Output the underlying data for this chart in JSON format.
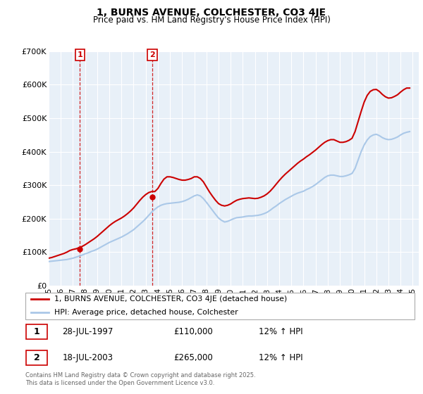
{
  "title": "1, BURNS AVENUE, COLCHESTER, CO3 4JE",
  "subtitle": "Price paid vs. HM Land Registry's House Price Index (HPI)",
  "legend_line1": "1, BURNS AVENUE, COLCHESTER, CO3 4JE (detached house)",
  "legend_line2": "HPI: Average price, detached house, Colchester",
  "footer": "Contains HM Land Registry data © Crown copyright and database right 2025.\nThis data is licensed under the Open Government Licence v3.0.",
  "purchases": [
    {
      "num": 1,
      "date": "28-JUL-1997",
      "price": "£110,000",
      "hpi": "12% ↑ HPI",
      "year": 1997.57,
      "value": 110000
    },
    {
      "num": 2,
      "date": "18-JUL-2003",
      "price": "£265,000",
      "hpi": "12% ↑ HPI",
      "year": 2003.54,
      "value": 265000
    }
  ],
  "hpi_color": "#aac8e8",
  "price_color": "#cc0000",
  "vline_color": "#cc0000",
  "plot_bg": "#e8f0f8",
  "grid_color": "#ffffff",
  "ylim": [
    0,
    700000
  ],
  "yticks": [
    0,
    100000,
    200000,
    300000,
    400000,
    500000,
    600000,
    700000
  ],
  "ytick_labels": [
    "£0",
    "£100K",
    "£200K",
    "£300K",
    "£400K",
    "£500K",
    "£600K",
    "£700K"
  ],
  "xlim_start": 1995.0,
  "xlim_end": 2025.5,
  "xticks": [
    1995,
    1996,
    1997,
    1998,
    1999,
    2000,
    2001,
    2002,
    2003,
    2004,
    2005,
    2006,
    2007,
    2008,
    2009,
    2010,
    2011,
    2012,
    2013,
    2014,
    2015,
    2016,
    2017,
    2018,
    2019,
    2020,
    2021,
    2022,
    2023,
    2024,
    2025
  ],
  "hpi_data_x": [
    1995.0,
    1995.25,
    1995.5,
    1995.75,
    1996.0,
    1996.25,
    1996.5,
    1996.75,
    1997.0,
    1997.25,
    1997.5,
    1997.75,
    1998.0,
    1998.25,
    1998.5,
    1998.75,
    1999.0,
    1999.25,
    1999.5,
    1999.75,
    2000.0,
    2000.25,
    2000.5,
    2000.75,
    2001.0,
    2001.25,
    2001.5,
    2001.75,
    2002.0,
    2002.25,
    2002.5,
    2002.75,
    2003.0,
    2003.25,
    2003.5,
    2003.75,
    2004.0,
    2004.25,
    2004.5,
    2004.75,
    2005.0,
    2005.25,
    2005.5,
    2005.75,
    2006.0,
    2006.25,
    2006.5,
    2006.75,
    2007.0,
    2007.25,
    2007.5,
    2007.75,
    2008.0,
    2008.25,
    2008.5,
    2008.75,
    2009.0,
    2009.25,
    2009.5,
    2009.75,
    2010.0,
    2010.25,
    2010.5,
    2010.75,
    2011.0,
    2011.25,
    2011.5,
    2011.75,
    2012.0,
    2012.25,
    2012.5,
    2012.75,
    2013.0,
    2013.25,
    2013.5,
    2013.75,
    2014.0,
    2014.25,
    2014.5,
    2014.75,
    2015.0,
    2015.25,
    2015.5,
    2015.75,
    2016.0,
    2016.25,
    2016.5,
    2016.75,
    2017.0,
    2017.25,
    2017.5,
    2017.75,
    2018.0,
    2018.25,
    2018.5,
    2018.75,
    2019.0,
    2019.25,
    2019.5,
    2019.75,
    2020.0,
    2020.25,
    2020.5,
    2020.75,
    2021.0,
    2021.25,
    2021.5,
    2021.75,
    2022.0,
    2022.25,
    2022.5,
    2022.75,
    2023.0,
    2023.25,
    2023.5,
    2023.75,
    2024.0,
    2024.25,
    2024.5,
    2024.75
  ],
  "hpi_data_y": [
    72000,
    73000,
    74000,
    75000,
    76000,
    77000,
    78000,
    80000,
    82000,
    85000,
    88000,
    91000,
    95000,
    98000,
    102000,
    105000,
    109000,
    114000,
    119000,
    124000,
    129000,
    133000,
    137000,
    141000,
    145000,
    150000,
    155000,
    161000,
    167000,
    175000,
    183000,
    191000,
    200000,
    210000,
    220000,
    228000,
    235000,
    240000,
    243000,
    245000,
    246000,
    247000,
    248000,
    249000,
    251000,
    254000,
    258000,
    263000,
    268000,
    271000,
    268000,
    260000,
    249000,
    237000,
    225000,
    213000,
    202000,
    195000,
    190000,
    192000,
    196000,
    200000,
    203000,
    204000,
    205000,
    207000,
    208000,
    208000,
    209000,
    210000,
    212000,
    215000,
    219000,
    225000,
    232000,
    238000,
    245000,
    251000,
    257000,
    262000,
    267000,
    272000,
    276000,
    279000,
    282000,
    287000,
    291000,
    296000,
    302000,
    309000,
    316000,
    323000,
    328000,
    330000,
    330000,
    328000,
    326000,
    326000,
    328000,
    331000,
    335000,
    350000,
    375000,
    400000,
    420000,
    435000,
    445000,
    450000,
    452000,
    448000,
    442000,
    438000,
    436000,
    437000,
    440000,
    444000,
    450000,
    455000,
    458000,
    460000
  ],
  "price_data_x": [
    1995.0,
    1995.25,
    1995.5,
    1995.75,
    1996.0,
    1996.25,
    1996.5,
    1996.75,
    1997.0,
    1997.25,
    1997.5,
    1997.75,
    1998.0,
    1998.25,
    1998.5,
    1998.75,
    1999.0,
    1999.25,
    1999.5,
    1999.75,
    2000.0,
    2000.25,
    2000.5,
    2000.75,
    2001.0,
    2001.25,
    2001.5,
    2001.75,
    2002.0,
    2002.25,
    2002.5,
    2002.75,
    2003.0,
    2003.25,
    2003.5,
    2003.75,
    2004.0,
    2004.25,
    2004.5,
    2004.75,
    2005.0,
    2005.25,
    2005.5,
    2005.75,
    2006.0,
    2006.25,
    2006.5,
    2006.75,
    2007.0,
    2007.25,
    2007.5,
    2007.75,
    2008.0,
    2008.25,
    2008.5,
    2008.75,
    2009.0,
    2009.25,
    2009.5,
    2009.75,
    2010.0,
    2010.25,
    2010.5,
    2010.75,
    2011.0,
    2011.25,
    2011.5,
    2011.75,
    2012.0,
    2012.25,
    2012.5,
    2012.75,
    2013.0,
    2013.25,
    2013.5,
    2013.75,
    2014.0,
    2014.25,
    2014.5,
    2014.75,
    2015.0,
    2015.25,
    2015.5,
    2015.75,
    2016.0,
    2016.25,
    2016.5,
    2016.75,
    2017.0,
    2017.25,
    2017.5,
    2017.75,
    2018.0,
    2018.25,
    2018.5,
    2018.75,
    2019.0,
    2019.25,
    2019.5,
    2019.75,
    2020.0,
    2020.25,
    2020.5,
    2020.75,
    2021.0,
    2021.25,
    2021.5,
    2021.75,
    2022.0,
    2022.25,
    2022.5,
    2022.75,
    2023.0,
    2023.25,
    2023.5,
    2023.75,
    2024.0,
    2024.25,
    2024.5,
    2024.75
  ],
  "price_data_y": [
    82000,
    84000,
    87000,
    90000,
    93000,
    96000,
    100000,
    105000,
    108000,
    110000,
    113000,
    117000,
    122000,
    128000,
    134000,
    140000,
    147000,
    155000,
    163000,
    171000,
    179000,
    186000,
    192000,
    197000,
    202000,
    208000,
    215000,
    223000,
    232000,
    243000,
    254000,
    264000,
    272000,
    278000,
    281000,
    281000,
    290000,
    305000,
    318000,
    325000,
    325000,
    323000,
    320000,
    317000,
    315000,
    315000,
    317000,
    320000,
    325000,
    325000,
    320000,
    310000,
    295000,
    280000,
    267000,
    255000,
    245000,
    240000,
    238000,
    240000,
    244000,
    250000,
    255000,
    258000,
    260000,
    261000,
    262000,
    261000,
    260000,
    261000,
    264000,
    268000,
    274000,
    282000,
    292000,
    303000,
    314000,
    324000,
    333000,
    341000,
    349000,
    357000,
    365000,
    372000,
    378000,
    385000,
    391000,
    398000,
    405000,
    413000,
    421000,
    428000,
    433000,
    436000,
    436000,
    432000,
    428000,
    428000,
    430000,
    434000,
    440000,
    460000,
    490000,
    520000,
    548000,
    568000,
    580000,
    585000,
    586000,
    580000,
    571000,
    564000,
    560000,
    561000,
    565000,
    570000,
    578000,
    585000,
    590000,
    590000
  ]
}
